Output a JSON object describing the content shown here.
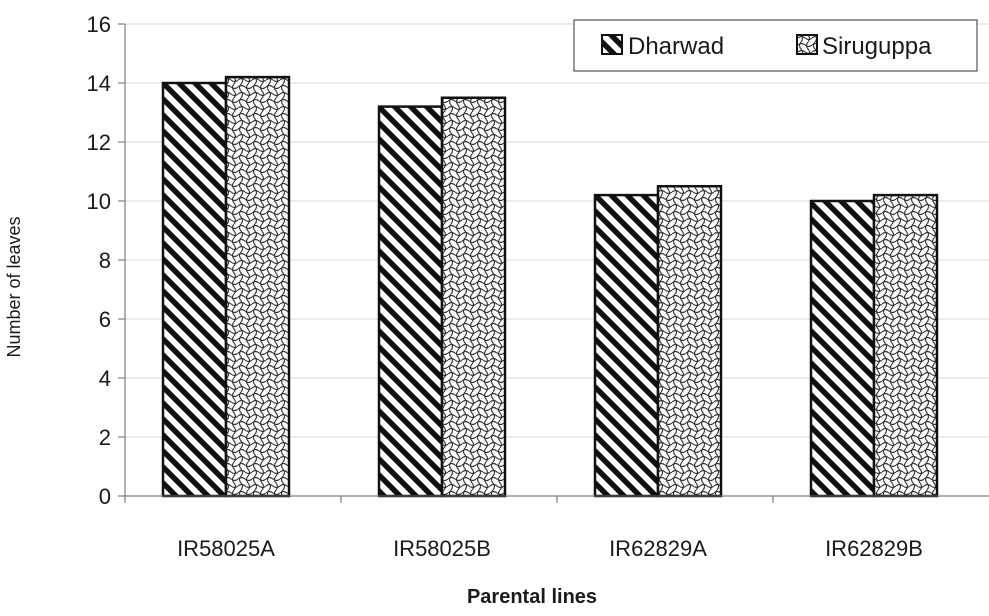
{
  "chart_data": {
    "type": "bar",
    "categories": [
      "IR58025A",
      "IR58025B",
      "IR62829A",
      "IR62829B"
    ],
    "series": [
      {
        "name": "Dharwad",
        "values": [
          14.0,
          13.2,
          10.2,
          10.0
        ],
        "pattern": "diagonal-stripes"
      },
      {
        "name": "Siruguppa",
        "values": [
          14.2,
          13.5,
          10.5,
          10.2
        ],
        "pattern": "checker-wave"
      }
    ],
    "title": "",
    "xlabel": "Parental lines",
    "ylabel": "Number of leaves",
    "ylim": [
      0,
      16
    ],
    "yticks": [
      0,
      2,
      4,
      6,
      8,
      10,
      12,
      14,
      16
    ],
    "grid": true,
    "legend_position": "top-right"
  },
  "colors": {
    "bar_stroke": "#111111",
    "stripe": "#111111",
    "grid": "#d9d9d9",
    "axis": "#666666",
    "background": "#ffffff"
  }
}
